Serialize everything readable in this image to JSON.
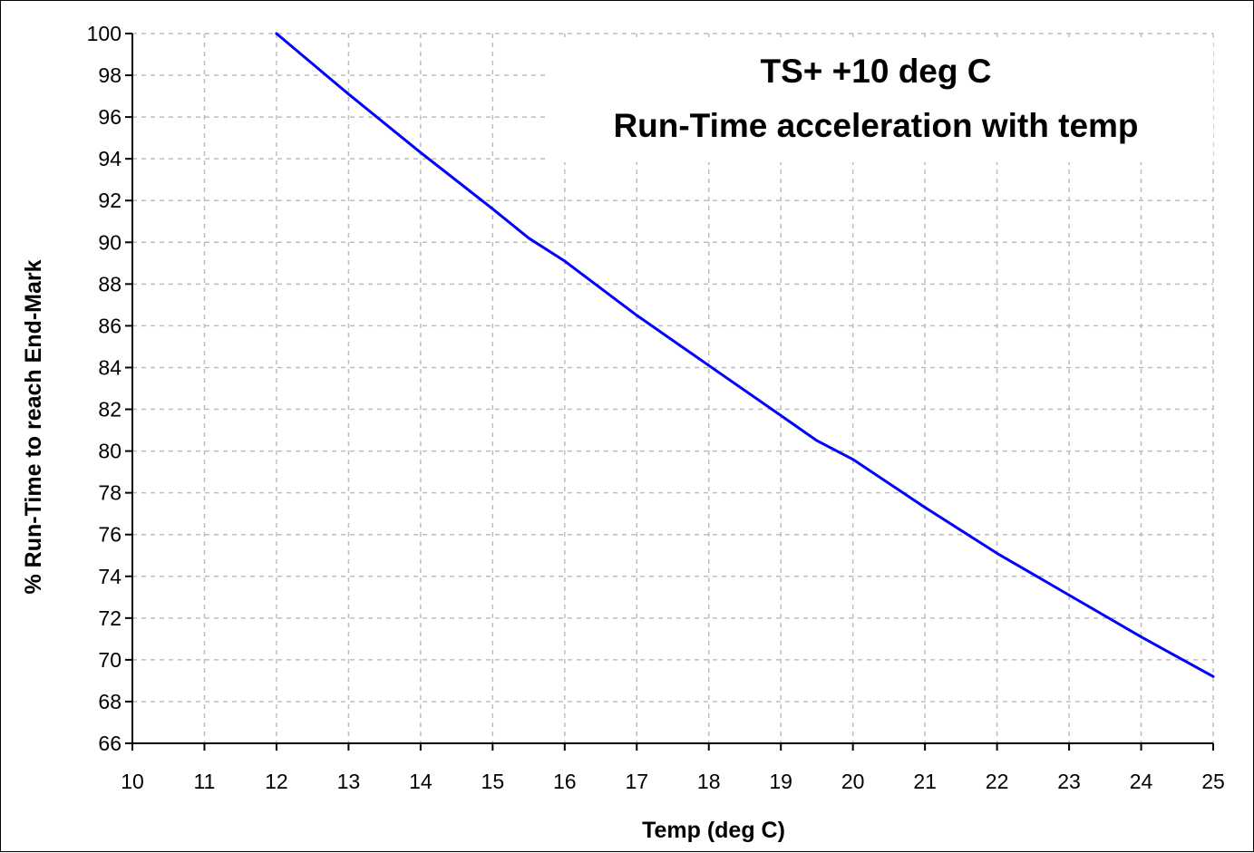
{
  "chart_data": {
    "type": "line",
    "title_lines": [
      "TS+ +10 deg C",
      "Run-Time acceleration with temp"
    ],
    "xlabel": "Temp (deg C)",
    "ylabel": "% Run-Time to reach End-Mark",
    "xlim": [
      10,
      25
    ],
    "ylim": [
      66,
      100
    ],
    "x_ticks": [
      10,
      11,
      12,
      13,
      14,
      15,
      16,
      17,
      18,
      19,
      20,
      21,
      22,
      23,
      24,
      25
    ],
    "y_ticks": [
      66,
      68,
      70,
      72,
      74,
      76,
      78,
      80,
      82,
      84,
      86,
      88,
      90,
      92,
      94,
      96,
      98,
      100
    ],
    "grid": true,
    "legend": "none",
    "series": [
      {
        "color": "#0000ff",
        "x": [
          12,
          13,
          14,
          15,
          15.5,
          16,
          17,
          18,
          19,
          19.5,
          20,
          21,
          22,
          23,
          24,
          25
        ],
        "y": [
          100,
          97.1,
          94.3,
          91.6,
          90.2,
          89.1,
          86.5,
          84.1,
          81.7,
          80.5,
          79.6,
          77.3,
          75.1,
          73.1,
          71.1,
          69.2
        ]
      }
    ]
  }
}
